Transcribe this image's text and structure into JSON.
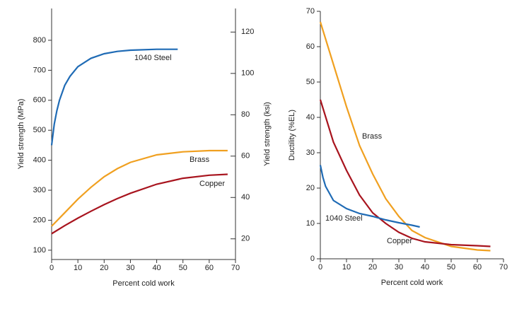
{
  "chart_data": [
    {
      "type": "line",
      "xlabel": "Percent cold work",
      "ylabel": "Yield strength (MPa)",
      "y2label": "Yield strength (ksi)",
      "xlim": [
        0,
        70
      ],
      "xticks": [
        0,
        10,
        20,
        30,
        40,
        50,
        60,
        70
      ],
      "ylim": [
        69,
        906
      ],
      "yticks": [
        100,
        200,
        300,
        400,
        500,
        600,
        700,
        800
      ],
      "y2lim": [
        10,
        131.4
      ],
      "y2ticks": [
        20,
        40,
        60,
        80,
        100,
        120
      ],
      "series": [
        {
          "name": "1040 Steel",
          "color": "#1f6bb5",
          "x": [
            0,
            1,
            2,
            3,
            5,
            7,
            10,
            15,
            20,
            25,
            30,
            40,
            48
          ],
          "values": [
            450,
            520,
            565,
            600,
            650,
            680,
            712,
            740,
            755,
            763,
            767,
            770,
            770
          ]
        },
        {
          "name": "Brass",
          "color": "#f0a020",
          "x": [
            0,
            5,
            10,
            15,
            20,
            25,
            30,
            40,
            50,
            60,
            67
          ],
          "values": [
            180,
            225,
            270,
            310,
            345,
            372,
            393,
            418,
            428,
            432,
            432
          ]
        },
        {
          "name": "Copper",
          "color": "#a8141e",
          "x": [
            0,
            5,
            10,
            15,
            20,
            25,
            30,
            40,
            50,
            60,
            67
          ],
          "values": [
            155,
            182,
            207,
            230,
            252,
            272,
            290,
            320,
            340,
            350,
            353
          ]
        }
      ]
    },
    {
      "type": "line",
      "xlabel": "Percent cold work",
      "ylabel": "Ductility (%EL)",
      "xlim": [
        0,
        70
      ],
      "xticks": [
        0,
        10,
        20,
        30,
        40,
        50,
        60,
        70
      ],
      "ylim": [
        0,
        70
      ],
      "yticks": [
        0,
        10,
        20,
        30,
        40,
        50,
        60,
        70
      ],
      "series": [
        {
          "name": "Brass",
          "color": "#f0a020",
          "x": [
            0,
            5,
            10,
            15,
            20,
            25,
            30,
            35,
            40,
            50,
            60,
            65
          ],
          "values": [
            67,
            55,
            43,
            32,
            24,
            17,
            12,
            8,
            6,
            3.5,
            2.5,
            2.3
          ]
        },
        {
          "name": "Copper",
          "color": "#a8141e",
          "x": [
            0,
            5,
            10,
            15,
            20,
            25,
            30,
            35,
            40,
            50,
            60,
            65
          ],
          "values": [
            45,
            33,
            25,
            18,
            13,
            10,
            7.5,
            5.8,
            4.8,
            4,
            3.7,
            3.5
          ]
        },
        {
          "name": "1040 Steel",
          "color": "#1f6bb5",
          "x": [
            0,
            1,
            2,
            5,
            10,
            15,
            20,
            25,
            30,
            35,
            38
          ],
          "values": [
            26.5,
            23,
            20.5,
            16.5,
            14.2,
            12.8,
            12,
            11,
            10.2,
            9.5,
            9
          ]
        }
      ]
    }
  ]
}
